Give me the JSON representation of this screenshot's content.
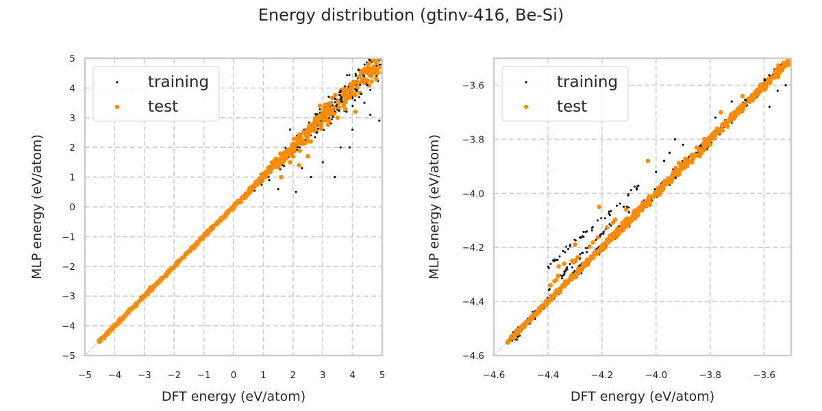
{
  "figure": {
    "title": "Energy distribution (gtinv-416, Be-Si)"
  },
  "colors": {
    "training": "#000000",
    "test": "#ff8c00",
    "grid": "#cccccc",
    "frame": "#cccccc",
    "diagonal": "#999999"
  },
  "chart_data": [
    {
      "type": "scatter",
      "title": "",
      "xlabel": "DFT energy (eV/atom)",
      "ylabel": "MLP energy (eV/atom)",
      "xlim": [
        -5,
        5
      ],
      "ylim": [
        -5,
        5
      ],
      "xticks": [
        "−5",
        "−4",
        "−3",
        "−2",
        "−1",
        "0",
        "1",
        "2",
        "3",
        "4",
        "5"
      ],
      "xtick_values": [
        -5,
        -4,
        -3,
        -2,
        -1,
        0,
        1,
        2,
        3,
        4,
        5
      ],
      "yticks": [
        "−5",
        "−4",
        "−3",
        "−2",
        "−1",
        "0",
        "1",
        "2",
        "3",
        "4",
        "5"
      ],
      "ytick_values": [
        -5,
        -4,
        -3,
        -2,
        -1,
        0,
        1,
        2,
        3,
        4,
        5
      ],
      "grid": true,
      "legend": {
        "placement": "upper-left",
        "entries": [
          "training",
          "test"
        ]
      },
      "diagonal": [
        -5,
        5
      ],
      "series": [
        {
          "name": "training",
          "points_range": {
            "x": [
              -4.55,
              5.0
            ],
            "y": [
              -4.55,
              5.0
            ]
          },
          "outliers": [
            [
              4.9,
              2.9
            ],
            [
              4.6,
              3.1
            ],
            [
              4.3,
              3.8
            ],
            [
              4.0,
              2.6
            ],
            [
              3.6,
              2.0
            ],
            [
              3.4,
              1.0
            ],
            [
              3.0,
              1.5
            ],
            [
              2.6,
              1.0
            ],
            [
              2.3,
              1.3
            ],
            [
              2.1,
              0.5
            ],
            [
              1.5,
              0.6
            ],
            [
              3.8,
              3.2
            ],
            [
              4.5,
              4.1
            ],
            [
              4.2,
              4.6
            ],
            [
              3.2,
              3.7
            ],
            [
              3.6,
              3.9
            ],
            [
              2.8,
              2.5
            ],
            [
              1.9,
              2.6
            ],
            [
              1.2,
              0.9
            ],
            [
              3.9,
              2.0
            ],
            [
              4.4,
              3.5
            ]
          ]
        },
        {
          "name": "test",
          "points_range": {
            "x": [
              -4.55,
              5.0
            ],
            "y": [
              -4.55,
              5.0
            ]
          },
          "outliers": [
            [
              4.1,
              3.2
            ],
            [
              3.5,
              3.0
            ],
            [
              3.2,
              2.9
            ],
            [
              2.9,
              3.4
            ],
            [
              2.5,
              1.7
            ],
            [
              2.2,
              1.4
            ],
            [
              1.6,
              1.0
            ],
            [
              2.4,
              2.5
            ],
            [
              3.7,
              3.4
            ],
            [
              4.8,
              4.3
            ],
            [
              1.9,
              1.5
            ],
            [
              2.0,
              1.7
            ],
            [
              2.6,
              2.2
            ]
          ]
        }
      ]
    },
    {
      "type": "scatter",
      "title": "",
      "xlabel": "DFT energy (eV/atom)",
      "ylabel": "MLP energy (eV/atom)",
      "xlim": [
        -4.6,
        -3.5
      ],
      "ylim": [
        -4.6,
        -3.5
      ],
      "xticks": [
        "−4.6",
        "−4.4",
        "−4.2",
        "−4.0",
        "−3.8",
        "−3.6"
      ],
      "xtick_values": [
        -4.6,
        -4.4,
        -4.2,
        -4.0,
        -3.8,
        -3.6
      ],
      "yticks": [
        "−4.6",
        "−4.4",
        "−4.2",
        "−4.0",
        "−3.8",
        "−3.6"
      ],
      "ytick_values": [
        -4.6,
        -4.4,
        -4.2,
        -4.0,
        -3.8,
        -3.6
      ],
      "grid": true,
      "legend": {
        "placement": "upper-left",
        "entries": [
          "training",
          "test"
        ]
      },
      "diagonal": [
        -4.6,
        -3.5
      ],
      "series": [
        {
          "name": "training",
          "points_range": {
            "x": [
              -4.55,
              -3.5
            ],
            "y": [
              -4.55,
              -3.5
            ]
          },
          "branch_upper": {
            "x": [
              -4.4,
              -4.05
            ],
            "offset": 0.13
          },
          "branch_mid": {
            "x": [
              -4.4,
              -4.1
            ],
            "offset": 0.05
          },
          "outliers": [
            [
              -3.52,
              -3.6
            ],
            [
              -3.55,
              -3.62
            ],
            [
              -3.58,
              -3.68
            ],
            [
              -3.72,
              -3.66
            ],
            [
              -3.78,
              -3.72
            ],
            [
              -3.9,
              -3.82
            ],
            [
              -3.93,
              -3.8
            ],
            [
              -3.95,
              -3.85
            ],
            [
              -3.97,
              -3.88
            ],
            [
              -4.0,
              -3.92
            ],
            [
              -4.12,
              -4.05
            ],
            [
              -4.1,
              -4.07
            ]
          ]
        },
        {
          "name": "test",
          "points_range": {
            "x": [
              -4.55,
              -3.5
            ],
            "y": [
              -4.55,
              -3.5
            ]
          },
          "outliers": [
            [
              -3.62,
              -3.62
            ],
            [
              -3.71,
              -3.7
            ],
            [
              -3.76,
              -3.7
            ],
            [
              -4.03,
              -3.88
            ],
            [
              -4.11,
              -4.06
            ],
            [
              -4.36,
              -4.27
            ],
            [
              -4.34,
              -4.26
            ],
            [
              -4.21,
              -4.05
            ],
            [
              -4.31,
              -4.25
            ],
            [
              -4.3,
              -4.19
            ],
            [
              -4.39,
              -4.34
            ],
            [
              -3.8,
              -3.82
            ],
            [
              -3.68,
              -3.64
            ]
          ]
        }
      ]
    }
  ]
}
